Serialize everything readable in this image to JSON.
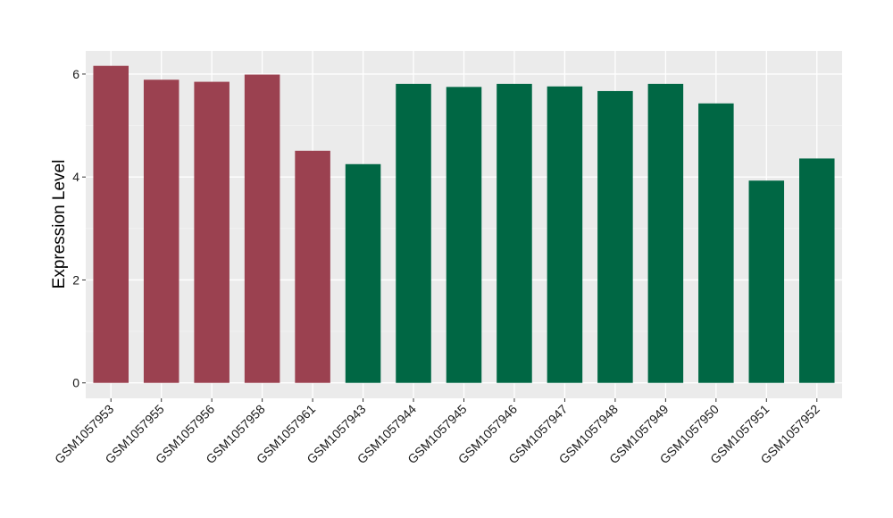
{
  "chart_data": {
    "type": "bar",
    "ylabel": "Expression Level",
    "xlabel": "",
    "ylim": [
      -0.3,
      6.45
    ],
    "yticks": [
      0,
      2,
      4,
      6
    ],
    "grid": true,
    "background": "#EBEBEB",
    "categories": [
      "GSM1057953",
      "GSM1057955",
      "GSM1057956",
      "GSM1057958",
      "GSM1057961",
      "GSM1057943",
      "GSM1057944",
      "GSM1057945",
      "GSM1057946",
      "GSM1057947",
      "GSM1057948",
      "GSM1057949",
      "GSM1057950",
      "GSM1057951",
      "GSM1057952"
    ],
    "values": [
      6.16,
      5.89,
      5.85,
      5.99,
      4.51,
      4.25,
      5.81,
      5.75,
      5.81,
      5.76,
      5.67,
      5.81,
      5.43,
      3.93,
      4.36
    ],
    "colors": [
      "#9B4150",
      "#9B4150",
      "#9B4150",
      "#9B4150",
      "#9B4150",
      "#006744",
      "#006744",
      "#006744",
      "#006744",
      "#006744",
      "#006744",
      "#006744",
      "#006744",
      "#006744",
      "#006744"
    ]
  }
}
